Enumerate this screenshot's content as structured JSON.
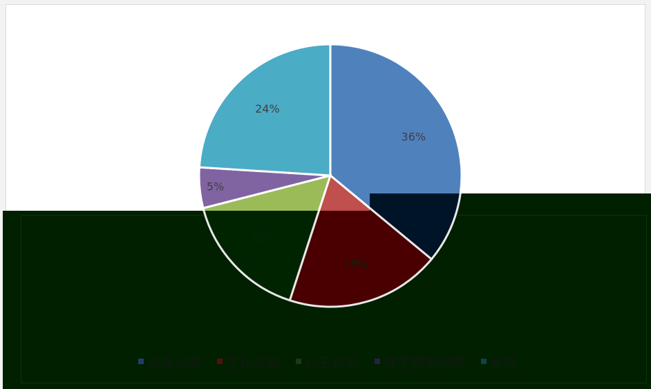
{
  "chart_data": {
    "type": "pie",
    "title": "",
    "slices": [
      {
        "name": "免疫诊断",
        "value": 36,
        "label": "36%",
        "color": "#4f81bd"
      },
      {
        "name": "生化诊断",
        "value": 19,
        "label": "19%",
        "color": "#c0504d"
      },
      {
        "name": "分子诊断",
        "value": 16,
        "label": "16%",
        "color": "#9bbb59"
      },
      {
        "name": "微生物学诊断",
        "value": 5,
        "label": "5%",
        "color": "#8064a2"
      },
      {
        "name": "其他",
        "value": 24,
        "label": "24%",
        "color": "#4bacc6"
      }
    ],
    "legend_position": "bottom"
  },
  "legend": {
    "items": [
      {
        "label": "免疫诊断",
        "color": "#1f3f6a"
      },
      {
        "label": "生化诊断",
        "color": "#5a0e0e"
      },
      {
        "label": "分子诊断",
        "color": "#1e3a12"
      },
      {
        "label": "微生物学诊断",
        "color": "#2c1f45"
      },
      {
        "label": "其他",
        "color": "#12404e"
      }
    ]
  }
}
